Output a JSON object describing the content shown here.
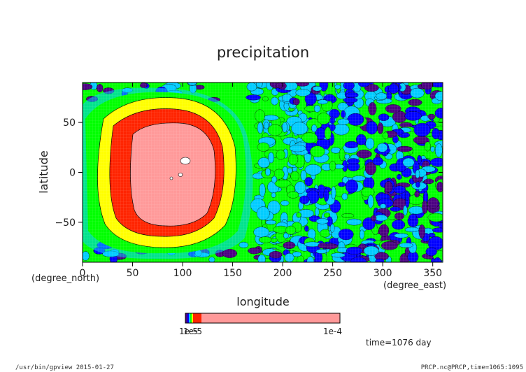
{
  "chart_data": {
    "type": "heatmap",
    "title": "precipitation",
    "xlabel": "longitude",
    "ylabel": "latitude",
    "x_unit": "(degree_east)",
    "y_unit": "(degree_north)",
    "xlim": [
      0,
      360
    ],
    "ylim": [
      -90,
      90
    ],
    "x_ticks": [
      "0",
      "50",
      "100",
      "150",
      "200",
      "250",
      "300",
      "350"
    ],
    "y_ticks": [
      "50",
      "0",
      "−50"
    ],
    "x_tick_values": [
      0,
      50,
      100,
      150,
      200,
      250,
      300,
      350
    ],
    "y_tick_values": [
      50,
      0,
      -50
    ],
    "time_label": "time=1076 day",
    "colorbar": {
      "left_label": "1e-5",
      "right_label": "1e-4",
      "overlap_text": "1e-5",
      "colors": [
        "#4b0082",
        "#0000ff",
        "#00ccff",
        "#00ff00",
        "#ffff00",
        "#ff2400",
        "#ff9999"
      ]
    },
    "features": {
      "core": {
        "lon": 85,
        "lat": 0,
        "value_label": "1e-4",
        "color": "#ff9999"
      },
      "rings": [
        {
          "color": "#ff2400",
          "lon_range": [
            30,
            130
          ]
        },
        {
          "color": "#ffff00",
          "lon_range": [
            20,
            145
          ]
        },
        {
          "color": "#00ff00",
          "lon_range": [
            0,
            175
          ]
        }
      ],
      "background_east": {
        "lon_range": [
          175,
          360
        ],
        "colors": [
          "#00ff00",
          "#00ccff",
          "#0000ff",
          "#4b0082"
        ]
      }
    }
  },
  "footer": {
    "left": "/usr/bin/gpview  2015-01-27",
    "right": "PRCP.nc@PRCP,time=1065:1095"
  }
}
